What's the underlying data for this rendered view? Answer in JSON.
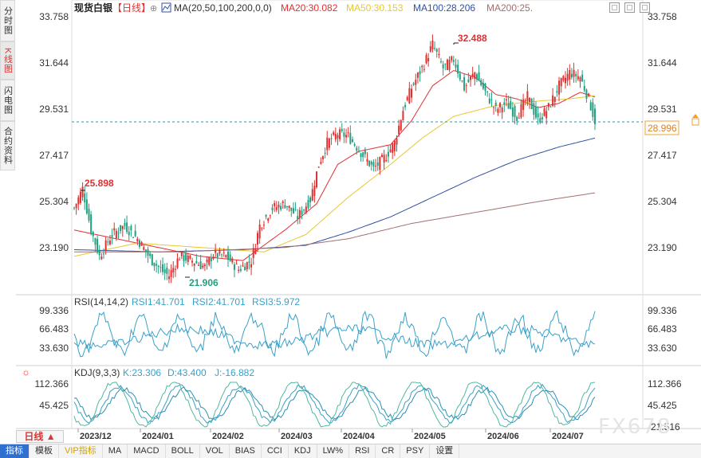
{
  "side_tabs": [
    {
      "label": "分时图",
      "active": false
    },
    {
      "label": "K线图",
      "active": true
    },
    {
      "label": "闪电图",
      "active": false
    },
    {
      "label": "合约资料",
      "active": false
    }
  ],
  "header": {
    "title": "现货白银",
    "period_tag": "【日线】",
    "indicator_name": "MA(20,50,100,200,0,0)",
    "ma_labels": [
      {
        "text": "MA20:30.082",
        "color": "#e03030"
      },
      {
        "text": "MA50:30.153",
        "color": "#e8c830"
      },
      {
        "text": "MA100:28.206",
        "color": "#3050a0"
      },
      {
        "text": "MA200:25.",
        "color": "#a07070"
      }
    ]
  },
  "price_axis": {
    "ticks": [
      "33.758",
      "31.644",
      "29.531",
      "27.417",
      "25.304",
      "23.190"
    ],
    "current_price": "28.996"
  },
  "annotations": {
    "high": "32.488",
    "left_high": "25.898",
    "low": "21.906"
  },
  "rsi_panel": {
    "title": "RSI(14,14,2)",
    "labels": [
      {
        "text": "RSI1:41.701",
        "color": "#3aa0c8"
      },
      {
        "text": "RSI2:41.701",
        "color": "#3aa0c8"
      },
      {
        "text": "RSI3:5.972",
        "color": "#3aa0c8"
      }
    ],
    "ticks": [
      "99.336",
      "66.483",
      "33.630"
    ]
  },
  "kdj_panel": {
    "title": "KDJ(9,3,3)",
    "labels": [
      {
        "text": "K:23.306",
        "color": "#3aa0c8"
      },
      {
        "text": "D:43.400",
        "color": "#3aa0c8"
      },
      {
        "text": "J:-16.882",
        "color": "#3aa0c8"
      }
    ],
    "ticks": [
      "112.366",
      "45.425",
      "-21.516"
    ]
  },
  "date_axis": [
    "2023/12",
    "2024/01",
    "2024/02",
    "2024/03",
    "2024/04",
    "2024/05",
    "2024/06",
    "2024/07"
  ],
  "period_button": "日线",
  "bottom_tabs": [
    "指标",
    "模板",
    "VIP指标",
    "MA",
    "MACD",
    "BOLL",
    "VOL",
    "BIAS",
    "CCI",
    "KDJ",
    "LW%",
    "RSI",
    "CR",
    "PSY",
    "设置"
  ],
  "watermark": "FX678",
  "colors": {
    "up": "#e03030",
    "down": "#20a080",
    "ma20": "#e03030",
    "ma50": "#e8c830",
    "ma100": "#3050a0",
    "ma200": "#a07070"
  },
  "chart_data": {
    "type": "line",
    "title": "现货白银",
    "x": [
      "2023/12",
      "2024/01",
      "2024/02",
      "2024/03",
      "2024/04",
      "2024/05",
      "2024/06",
      "2024/07"
    ],
    "ylim": [
      21.0,
      33.758
    ],
    "grid": false,
    "candles": {
      "anchors": [
        [
          0,
          25.0
        ],
        [
          4,
          25.898
        ],
        [
          8,
          24.0
        ],
        [
          12,
          22.8
        ],
        [
          18,
          23.8
        ],
        [
          24,
          24.2
        ],
        [
          30,
          23.6
        ],
        [
          36,
          22.7
        ],
        [
          42,
          22.1
        ],
        [
          45,
          21.906
        ],
        [
          50,
          22.8
        ],
        [
          56,
          22.6
        ],
        [
          62,
          22.3
        ],
        [
          66,
          22.9
        ],
        [
          72,
          22.8
        ],
        [
          78,
          22.2
        ],
        [
          84,
          22.6
        ],
        [
          88,
          24.2
        ],
        [
          94,
          25.0
        ],
        [
          100,
          25.2
        ],
        [
          106,
          24.6
        ],
        [
          112,
          25.4
        ],
        [
          116,
          27.0
        ],
        [
          120,
          28.0
        ],
        [
          125,
          28.4
        ],
        [
          130,
          28.3
        ],
        [
          134,
          27.8
        ],
        [
          138,
          27.3
        ],
        [
          142,
          26.8
        ],
        [
          148,
          27.4
        ],
        [
          152,
          28.0
        ],
        [
          156,
          29.5
        ],
        [
          160,
          30.5
        ],
        [
          166,
          31.6
        ],
        [
          170,
          32.488
        ],
        [
          175,
          31.4
        ],
        [
          180,
          31.8
        ],
        [
          185,
          30.5
        ],
        [
          190,
          31.2
        ],
        [
          195,
          30.3
        ],
        [
          200,
          29.5
        ],
        [
          205,
          29.8
        ],
        [
          210,
          29.2
        ],
        [
          215,
          30.1
        ],
        [
          220,
          29.0
        ],
        [
          225,
          29.6
        ],
        [
          230,
          30.6
        ],
        [
          235,
          31.2
        ],
        [
          240,
          31.0
        ],
        [
          244,
          30.0
        ],
        [
          247,
          28.996
        ]
      ]
    },
    "series": [
      {
        "name": "MA20",
        "values": [
          [
            0,
            24.0
          ],
          [
            20,
            23.6
          ],
          [
            40,
            23.2
          ],
          [
            60,
            22.8
          ],
          [
            80,
            22.6
          ],
          [
            100,
            24.0
          ],
          [
            115,
            25.2
          ],
          [
            125,
            27.0
          ],
          [
            135,
            27.6
          ],
          [
            150,
            27.9
          ],
          [
            160,
            29.0
          ],
          [
            170,
            30.6
          ],
          [
            180,
            31.3
          ],
          [
            190,
            31.0
          ],
          [
            200,
            30.2
          ],
          [
            210,
            30.0
          ],
          [
            220,
            29.6
          ],
          [
            230,
            29.8
          ],
          [
            240,
            30.3
          ],
          [
            247,
            30.082
          ]
        ]
      },
      {
        "name": "MA50",
        "values": [
          [
            0,
            22.8
          ],
          [
            30,
            23.4
          ],
          [
            60,
            23.2
          ],
          [
            90,
            23.0
          ],
          [
            110,
            23.8
          ],
          [
            130,
            25.5
          ],
          [
            150,
            27.0
          ],
          [
            165,
            28.2
          ],
          [
            180,
            29.2
          ],
          [
            200,
            29.7
          ],
          [
            220,
            29.9
          ],
          [
            235,
            30.0
          ],
          [
            247,
            30.153
          ]
        ]
      },
      {
        "name": "MA100",
        "values": [
          [
            0,
            23.1
          ],
          [
            40,
            23.0
          ],
          [
            80,
            23.1
          ],
          [
            110,
            23.3
          ],
          [
            130,
            23.9
          ],
          [
            150,
            24.6
          ],
          [
            170,
            25.5
          ],
          [
            190,
            26.4
          ],
          [
            210,
            27.2
          ],
          [
            230,
            27.8
          ],
          [
            247,
            28.206
          ]
        ]
      },
      {
        "name": "MA200",
        "values": [
          [
            0,
            23.0
          ],
          [
            50,
            23.0
          ],
          [
            100,
            23.2
          ],
          [
            130,
            23.6
          ],
          [
            160,
            24.3
          ],
          [
            190,
            24.8
          ],
          [
            220,
            25.3
          ],
          [
            247,
            25.7
          ]
        ]
      }
    ]
  }
}
